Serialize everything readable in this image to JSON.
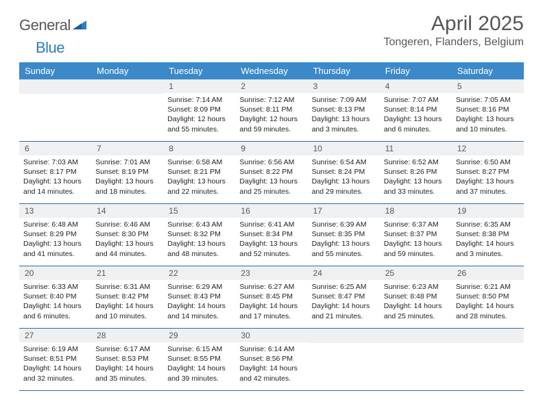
{
  "brand": {
    "part1": "General",
    "part2": "Blue"
  },
  "title": "April 2025",
  "location": "Tongeren, Flanders, Belgium",
  "colors": {
    "header_bg": "#3b89c9",
    "header_text": "#ffffff",
    "daynum_bg": "#eef0f2",
    "row_border": "#2e6ca3",
    "title_color": "#545658",
    "logo_gray": "#56585a",
    "logo_blue": "#2d7cc0"
  },
  "weekdays": [
    "Sunday",
    "Monday",
    "Tuesday",
    "Wednesday",
    "Thursday",
    "Friday",
    "Saturday"
  ],
  "weeks": [
    [
      {
        "n": "",
        "sunrise": "",
        "sunset": "",
        "daylight": ""
      },
      {
        "n": "",
        "sunrise": "",
        "sunset": "",
        "daylight": ""
      },
      {
        "n": "1",
        "sunrise": "Sunrise: 7:14 AM",
        "sunset": "Sunset: 8:09 PM",
        "daylight": "Daylight: 12 hours and 55 minutes."
      },
      {
        "n": "2",
        "sunrise": "Sunrise: 7:12 AM",
        "sunset": "Sunset: 8:11 PM",
        "daylight": "Daylight: 12 hours and 59 minutes."
      },
      {
        "n": "3",
        "sunrise": "Sunrise: 7:09 AM",
        "sunset": "Sunset: 8:13 PM",
        "daylight": "Daylight: 13 hours and 3 minutes."
      },
      {
        "n": "4",
        "sunrise": "Sunrise: 7:07 AM",
        "sunset": "Sunset: 8:14 PM",
        "daylight": "Daylight: 13 hours and 6 minutes."
      },
      {
        "n": "5",
        "sunrise": "Sunrise: 7:05 AM",
        "sunset": "Sunset: 8:16 PM",
        "daylight": "Daylight: 13 hours and 10 minutes."
      }
    ],
    [
      {
        "n": "6",
        "sunrise": "Sunrise: 7:03 AM",
        "sunset": "Sunset: 8:17 PM",
        "daylight": "Daylight: 13 hours and 14 minutes."
      },
      {
        "n": "7",
        "sunrise": "Sunrise: 7:01 AM",
        "sunset": "Sunset: 8:19 PM",
        "daylight": "Daylight: 13 hours and 18 minutes."
      },
      {
        "n": "8",
        "sunrise": "Sunrise: 6:58 AM",
        "sunset": "Sunset: 8:21 PM",
        "daylight": "Daylight: 13 hours and 22 minutes."
      },
      {
        "n": "9",
        "sunrise": "Sunrise: 6:56 AM",
        "sunset": "Sunset: 8:22 PM",
        "daylight": "Daylight: 13 hours and 25 minutes."
      },
      {
        "n": "10",
        "sunrise": "Sunrise: 6:54 AM",
        "sunset": "Sunset: 8:24 PM",
        "daylight": "Daylight: 13 hours and 29 minutes."
      },
      {
        "n": "11",
        "sunrise": "Sunrise: 6:52 AM",
        "sunset": "Sunset: 8:26 PM",
        "daylight": "Daylight: 13 hours and 33 minutes."
      },
      {
        "n": "12",
        "sunrise": "Sunrise: 6:50 AM",
        "sunset": "Sunset: 8:27 PM",
        "daylight": "Daylight: 13 hours and 37 minutes."
      }
    ],
    [
      {
        "n": "13",
        "sunrise": "Sunrise: 6:48 AM",
        "sunset": "Sunset: 8:29 PM",
        "daylight": "Daylight: 13 hours and 41 minutes."
      },
      {
        "n": "14",
        "sunrise": "Sunrise: 6:46 AM",
        "sunset": "Sunset: 8:30 PM",
        "daylight": "Daylight: 13 hours and 44 minutes."
      },
      {
        "n": "15",
        "sunrise": "Sunrise: 6:43 AM",
        "sunset": "Sunset: 8:32 PM",
        "daylight": "Daylight: 13 hours and 48 minutes."
      },
      {
        "n": "16",
        "sunrise": "Sunrise: 6:41 AM",
        "sunset": "Sunset: 8:34 PM",
        "daylight": "Daylight: 13 hours and 52 minutes."
      },
      {
        "n": "17",
        "sunrise": "Sunrise: 6:39 AM",
        "sunset": "Sunset: 8:35 PM",
        "daylight": "Daylight: 13 hours and 55 minutes."
      },
      {
        "n": "18",
        "sunrise": "Sunrise: 6:37 AM",
        "sunset": "Sunset: 8:37 PM",
        "daylight": "Daylight: 13 hours and 59 minutes."
      },
      {
        "n": "19",
        "sunrise": "Sunrise: 6:35 AM",
        "sunset": "Sunset: 8:38 PM",
        "daylight": "Daylight: 14 hours and 3 minutes."
      }
    ],
    [
      {
        "n": "20",
        "sunrise": "Sunrise: 6:33 AM",
        "sunset": "Sunset: 8:40 PM",
        "daylight": "Daylight: 14 hours and 6 minutes."
      },
      {
        "n": "21",
        "sunrise": "Sunrise: 6:31 AM",
        "sunset": "Sunset: 8:42 PM",
        "daylight": "Daylight: 14 hours and 10 minutes."
      },
      {
        "n": "22",
        "sunrise": "Sunrise: 6:29 AM",
        "sunset": "Sunset: 8:43 PM",
        "daylight": "Daylight: 14 hours and 14 minutes."
      },
      {
        "n": "23",
        "sunrise": "Sunrise: 6:27 AM",
        "sunset": "Sunset: 8:45 PM",
        "daylight": "Daylight: 14 hours and 17 minutes."
      },
      {
        "n": "24",
        "sunrise": "Sunrise: 6:25 AM",
        "sunset": "Sunset: 8:47 PM",
        "daylight": "Daylight: 14 hours and 21 minutes."
      },
      {
        "n": "25",
        "sunrise": "Sunrise: 6:23 AM",
        "sunset": "Sunset: 8:48 PM",
        "daylight": "Daylight: 14 hours and 25 minutes."
      },
      {
        "n": "26",
        "sunrise": "Sunrise: 6:21 AM",
        "sunset": "Sunset: 8:50 PM",
        "daylight": "Daylight: 14 hours and 28 minutes."
      }
    ],
    [
      {
        "n": "27",
        "sunrise": "Sunrise: 6:19 AM",
        "sunset": "Sunset: 8:51 PM",
        "daylight": "Daylight: 14 hours and 32 minutes."
      },
      {
        "n": "28",
        "sunrise": "Sunrise: 6:17 AM",
        "sunset": "Sunset: 8:53 PM",
        "daylight": "Daylight: 14 hours and 35 minutes."
      },
      {
        "n": "29",
        "sunrise": "Sunrise: 6:15 AM",
        "sunset": "Sunset: 8:55 PM",
        "daylight": "Daylight: 14 hours and 39 minutes."
      },
      {
        "n": "30",
        "sunrise": "Sunrise: 6:14 AM",
        "sunset": "Sunset: 8:56 PM",
        "daylight": "Daylight: 14 hours and 42 minutes."
      },
      {
        "n": "",
        "sunrise": "",
        "sunset": "",
        "daylight": ""
      },
      {
        "n": "",
        "sunrise": "",
        "sunset": "",
        "daylight": ""
      },
      {
        "n": "",
        "sunrise": "",
        "sunset": "",
        "daylight": ""
      }
    ]
  ]
}
